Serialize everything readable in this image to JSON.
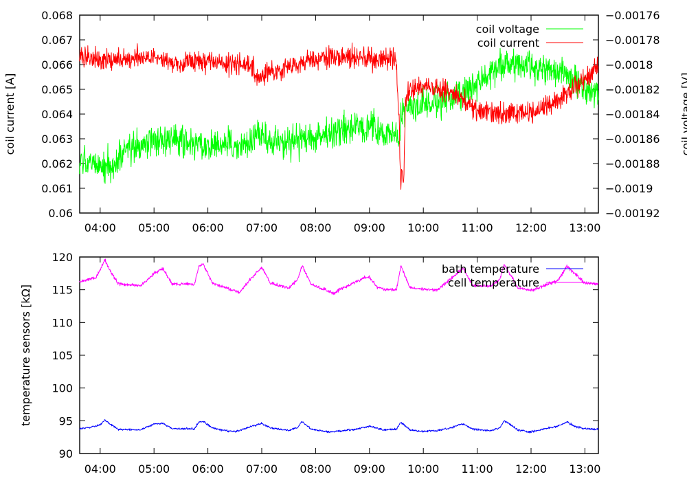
{
  "chart_data": [
    {
      "type": "line",
      "title": "",
      "xlabel": "",
      "ylabel": "coil current [A]",
      "y2label": "coil voltage [V]",
      "legend_position": "top-right",
      "x_range_hours": [
        3.62,
        13.25
      ],
      "xticks": [
        "04:00",
        "05:00",
        "06:00",
        "07:00",
        "08:00",
        "09:00",
        "10:00",
        "11:00",
        "12:00",
        "13:00"
      ],
      "xtick_hours": [
        4,
        5,
        6,
        7,
        8,
        9,
        10,
        11,
        12,
        13
      ],
      "ylim": [
        0.06,
        0.068
      ],
      "yticks": [
        "0.06",
        "0.061",
        "0.062",
        "0.063",
        "0.064",
        "0.065",
        "0.066",
        "0.067",
        "0.068"
      ],
      "y2lim": [
        -0.00192,
        -0.00176
      ],
      "y2ticks": [
        "-0.00192",
        "-0.0019",
        "-0.00188",
        "-0.00186",
        "-0.00184",
        "-0.00182",
        "-0.0018",
        "-0.00178",
        "-0.00176"
      ],
      "series": [
        {
          "name": "coil voltage",
          "axis": "y2",
          "color": "#00ff00",
          "noise": 6.5e-06,
          "x": [
            "03:37",
            "04:00",
            "04:15",
            "04:30",
            "05:00",
            "05:30",
            "06:00",
            "06:30",
            "06:50",
            "06:55",
            "07:10",
            "07:30",
            "08:00",
            "08:30",
            "09:00",
            "09:30",
            "09:34",
            "09:35",
            "09:38",
            "10:00",
            "10:30",
            "11:00",
            "11:30",
            "12:00",
            "12:30",
            "13:00",
            "13:15"
          ],
          "y": [
            -0.00188,
            -0.001882,
            -0.001882,
            -0.00187,
            -0.001862,
            -0.001862,
            -0.001864,
            -0.001866,
            -0.001864,
            -0.001852,
            -0.001862,
            -0.001864,
            -0.00186,
            -0.001852,
            -0.001852,
            -0.001858,
            -0.001866,
            -0.001838,
            -0.001836,
            -0.001832,
            -0.001828,
            -0.001816,
            -0.0018,
            -0.001802,
            -0.001806,
            -0.001818,
            -0.001828
          ]
        },
        {
          "name": "coil current",
          "axis": "y",
          "color": "#ff0000",
          "noise": 0.00022,
          "x": [
            "03:37",
            "04:00",
            "04:30",
            "05:00",
            "05:30",
            "06:00",
            "06:30",
            "06:50",
            "06:55",
            "07:05",
            "07:30",
            "08:00",
            "08:30",
            "09:00",
            "09:30",
            "09:33",
            "09:35",
            "09:36",
            "09:38",
            "09:40",
            "09:45",
            "10:00",
            "10:30",
            "11:00",
            "11:30",
            "12:00",
            "12:30",
            "13:00",
            "13:15"
          ],
          "y": [
            0.06635,
            0.06625,
            0.0662,
            0.06625,
            0.0661,
            0.06615,
            0.06605,
            0.066,
            0.0653,
            0.06565,
            0.0659,
            0.0662,
            0.0663,
            0.06625,
            0.0662,
            0.0637,
            0.0608,
            0.0618,
            0.0612,
            0.06445,
            0.06495,
            0.0652,
            0.0649,
            0.0642,
            0.06395,
            0.06405,
            0.0646,
            0.06535,
            0.0661
          ]
        }
      ]
    },
    {
      "type": "line",
      "title": "",
      "xlabel": "",
      "ylabel": "temperature sensors [kΩ]",
      "legend_position": "top-right",
      "x_range_hours": [
        3.62,
        13.25
      ],
      "xticks": [
        "04:00",
        "05:00",
        "06:00",
        "07:00",
        "08:00",
        "09:00",
        "10:00",
        "11:00",
        "12:00",
        "13:00"
      ],
      "xtick_hours": [
        4,
        5,
        6,
        7,
        8,
        9,
        10,
        11,
        12,
        13
      ],
      "ylim": [
        90,
        120
      ],
      "yticks": [
        "90",
        "95",
        "100",
        "105",
        "110",
        "115",
        "120"
      ],
      "series": [
        {
          "name": "bath temperature",
          "axis": "y",
          "color": "#0000ff",
          "noise": 0.07,
          "x": [
            "03:37",
            "03:50",
            "04:00",
            "04:05",
            "04:10",
            "04:20",
            "04:45",
            "05:00",
            "05:10",
            "05:20",
            "05:45",
            "05:50",
            "05:55",
            "06:05",
            "06:15",
            "06:30",
            "06:50",
            "07:00",
            "07:10",
            "07:30",
            "07:40",
            "07:45",
            "07:55",
            "08:15",
            "08:45",
            "09:00",
            "09:15",
            "09:30",
            "09:35",
            "09:45",
            "10:00",
            "10:15",
            "10:30",
            "10:40",
            "10:45",
            "10:55",
            "11:15",
            "11:25",
            "11:30",
            "11:35",
            "11:45",
            "12:00",
            "12:30",
            "12:40",
            "12:50",
            "13:00",
            "13:15"
          ],
          "y": [
            93.8,
            94.0,
            94.4,
            95.1,
            94.6,
            93.7,
            93.6,
            94.5,
            94.6,
            93.8,
            93.8,
            94.8,
            94.9,
            93.9,
            93.6,
            93.3,
            94.2,
            94.6,
            93.9,
            93.5,
            94.0,
            94.9,
            93.7,
            93.3,
            93.7,
            94.2,
            93.6,
            93.7,
            94.8,
            93.6,
            93.4,
            93.5,
            93.9,
            94.4,
            94.5,
            93.7,
            93.5,
            93.9,
            95.0,
            94.6,
            93.6,
            93.3,
            94.2,
            94.8,
            94.1,
            93.8,
            93.7
          ]
        },
        {
          "name": "cell temperature",
          "axis": "y",
          "color": "#ff00ff",
          "noise": 0.12,
          "x": [
            "03:37",
            "03:55",
            "04:00",
            "04:05",
            "04:10",
            "04:20",
            "04:45",
            "05:00",
            "05:10",
            "05:20",
            "05:45",
            "05:50",
            "05:55",
            "06:05",
            "06:15",
            "06:35",
            "06:55",
            "07:00",
            "07:10",
            "07:30",
            "07:40",
            "07:45",
            "07:55",
            "08:20",
            "08:55",
            "09:00",
            "09:10",
            "09:30",
            "09:35",
            "09:45",
            "10:00",
            "10:15",
            "10:40",
            "10:45",
            "10:55",
            "11:15",
            "11:25",
            "11:30",
            "11:35",
            "11:45",
            "12:00",
            "12:30",
            "12:40",
            "12:50",
            "13:00",
            "13:15"
          ],
          "y": [
            116.2,
            116.8,
            118.0,
            119.6,
            118.2,
            115.9,
            115.6,
            117.5,
            118.2,
            115.9,
            115.8,
            118.6,
            118.9,
            116.0,
            115.6,
            114.6,
            117.8,
            118.3,
            116.0,
            115.3,
            116.5,
            118.7,
            115.8,
            114.5,
            116.9,
            116.9,
            115.2,
            114.9,
            118.7,
            115.3,
            115.1,
            114.9,
            117.8,
            118.2,
            115.6,
            115.5,
            116.5,
            118.9,
            117.8,
            115.3,
            114.9,
            116.4,
            118.6,
            117.3,
            116.0,
            115.9
          ]
        }
      ]
    }
  ]
}
